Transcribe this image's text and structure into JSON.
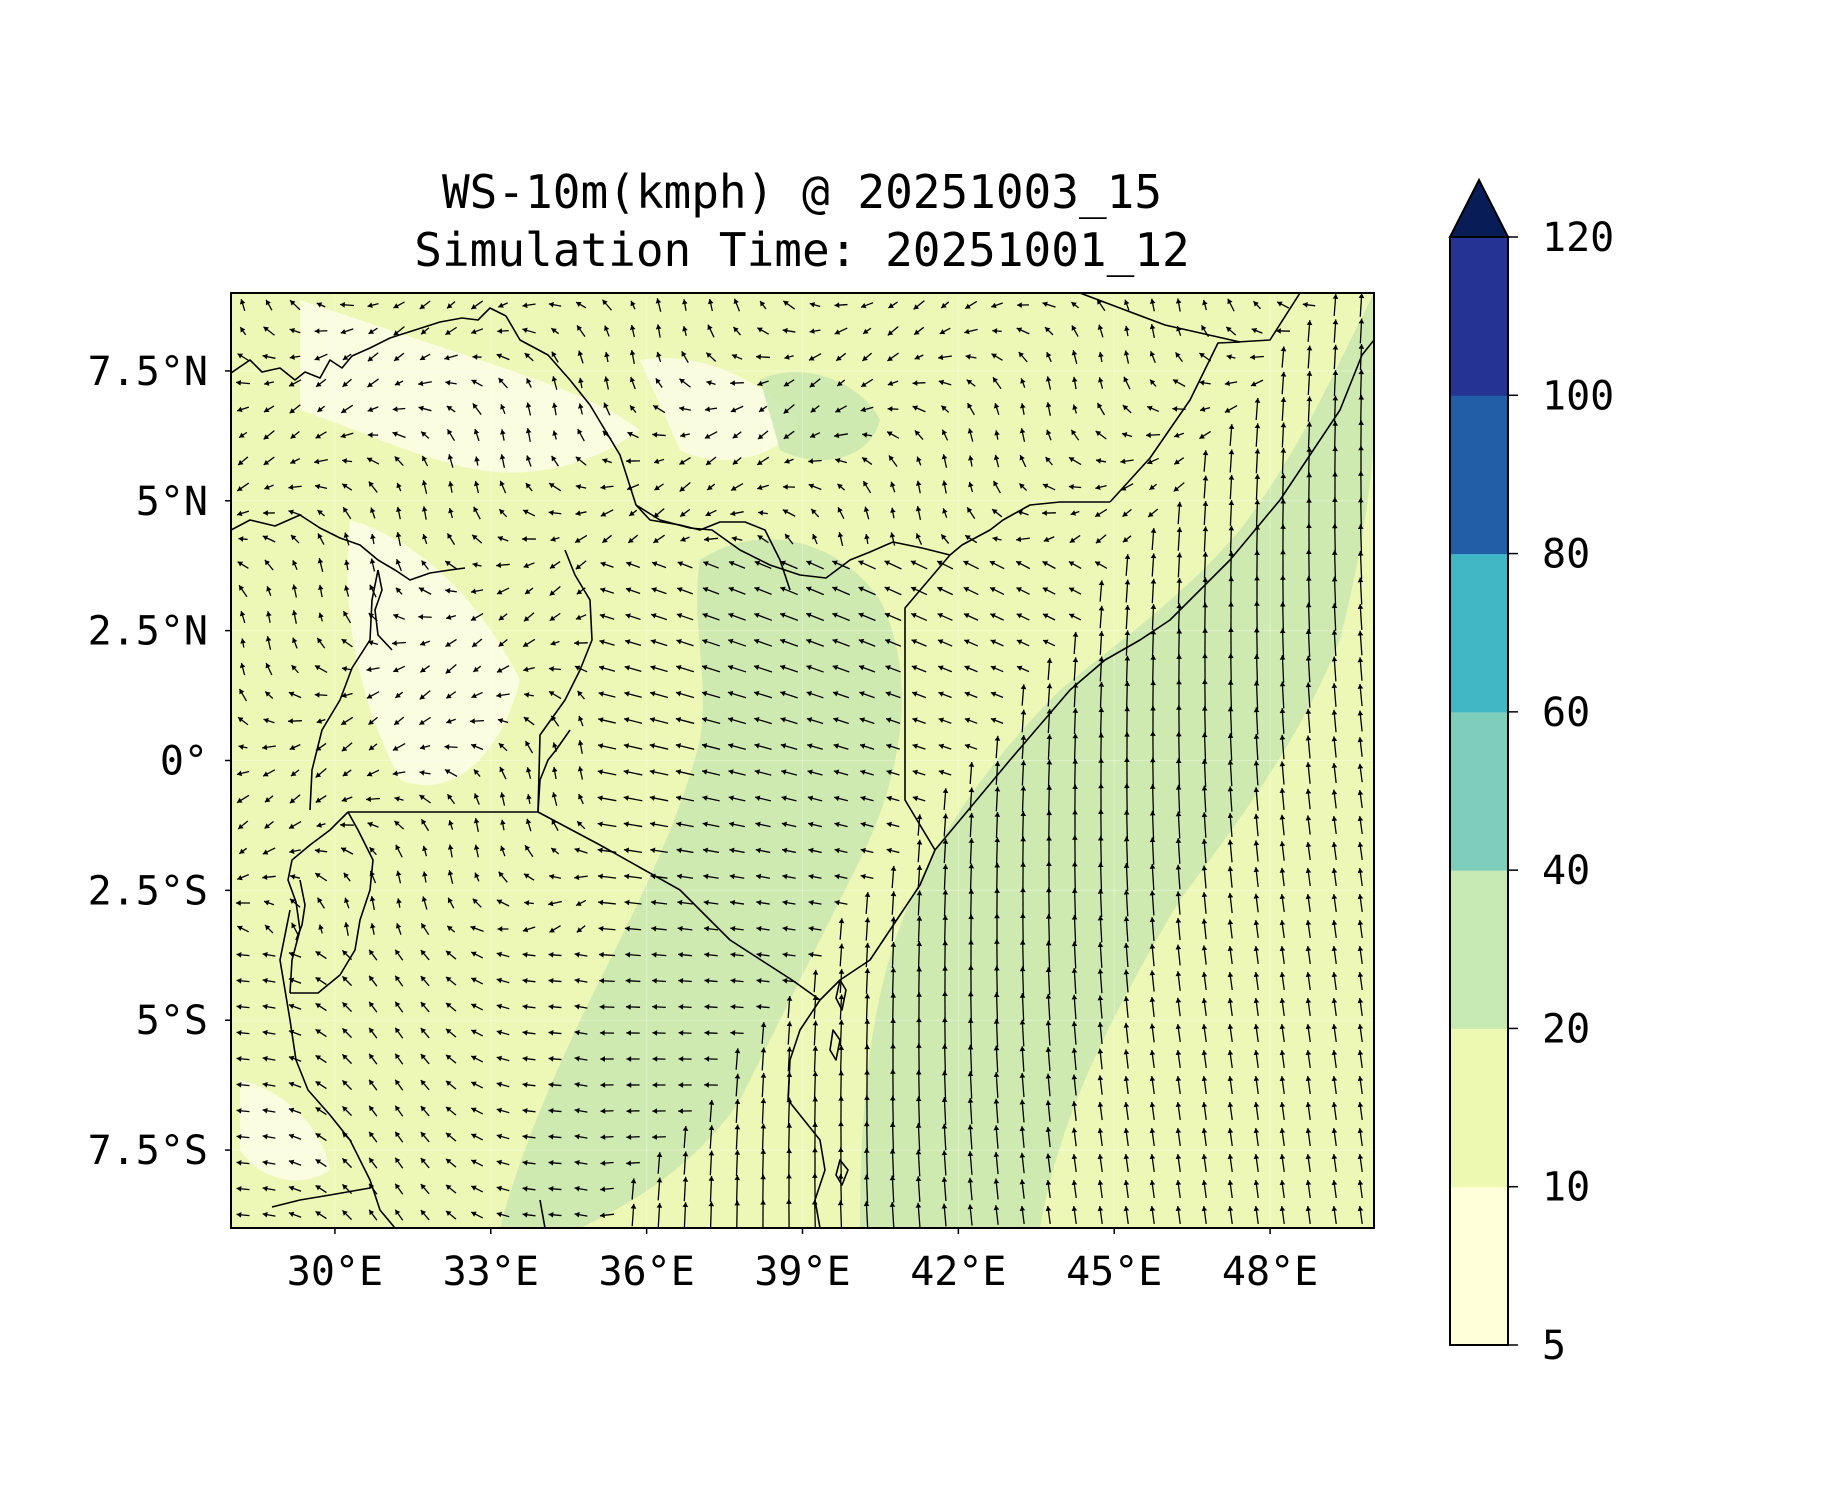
{
  "title": {
    "line1": "WS-10m(kmph) @ 20251003_15",
    "line2": "Simulation Time: 20251001_12"
  },
  "map": {
    "lon_range": [
      28.0,
      50.0
    ],
    "lat_range": [
      -9.0,
      9.0
    ],
    "x_ticks": [
      {
        "value": 30,
        "label": "30°E"
      },
      {
        "value": 33,
        "label": "33°E"
      },
      {
        "value": 36,
        "label": "36°E"
      },
      {
        "value": 39,
        "label": "39°E"
      },
      {
        "value": 42,
        "label": "42°E"
      },
      {
        "value": 45,
        "label": "45°E"
      },
      {
        "value": 48,
        "label": "48°E"
      }
    ],
    "y_ticks": [
      {
        "value": 7.5,
        "label": "7.5°N"
      },
      {
        "value": 5,
        "label": "5°N"
      },
      {
        "value": 2.5,
        "label": "2.5°N"
      },
      {
        "value": 0,
        "label": "0°"
      },
      {
        "value": -2.5,
        "label": "2.5°S"
      },
      {
        "value": -5,
        "label": "5°S"
      },
      {
        "value": -7.5,
        "label": "7.5°S"
      }
    ],
    "background_color": "#edf8b6",
    "grid": true,
    "vectors": "wind arrows on a regular grid"
  },
  "colorbar": {
    "ticks": [
      {
        "value": 5,
        "label": "5"
      },
      {
        "value": 10,
        "label": "10"
      },
      {
        "value": 20,
        "label": "20"
      },
      {
        "value": 40,
        "label": "40"
      },
      {
        "value": 60,
        "label": "60"
      },
      {
        "value": 80,
        "label": "80"
      },
      {
        "value": 100,
        "label": "100"
      },
      {
        "value": 120,
        "label": "120"
      }
    ],
    "bins": [
      {
        "from": 5,
        "to": 10,
        "color": "#ffffd9"
      },
      {
        "from": 10,
        "to": 20,
        "color": "#edf8b1"
      },
      {
        "from": 20,
        "to": 40,
        "color": "#c7e9b4"
      },
      {
        "from": 40,
        "to": 60,
        "color": "#7fcdbb"
      },
      {
        "from": 60,
        "to": 80,
        "color": "#41b6c4"
      },
      {
        "from": 80,
        "to": 100,
        "color": "#225ea8"
      },
      {
        "from": 100,
        "to": 120,
        "color": "#253494"
      }
    ],
    "extend_color": "#081d58",
    "extend": "max"
  }
}
